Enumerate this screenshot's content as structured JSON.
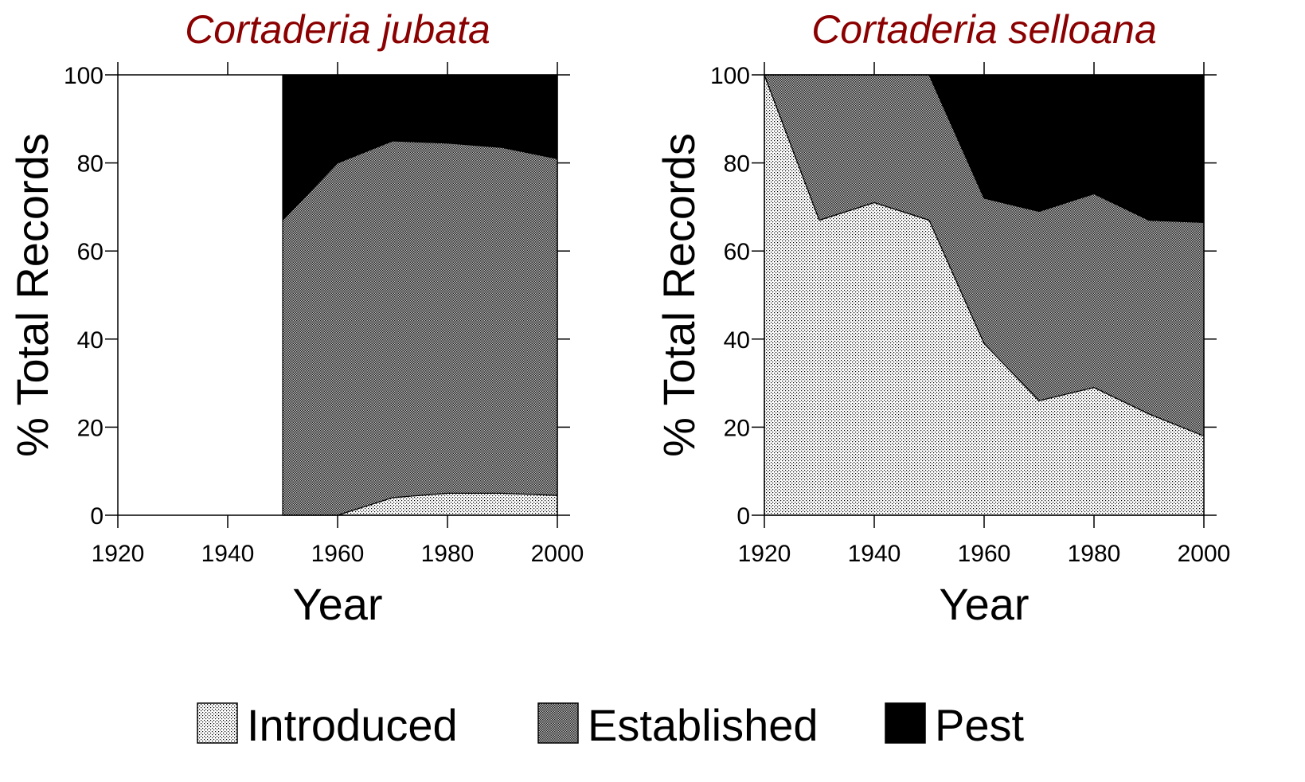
{
  "chart_data": [
    {
      "type": "stacked_area",
      "title": "Cortaderia jubata",
      "x_label": "Year",
      "y_label": "% Total Records",
      "x": [
        1950,
        1960,
        1970,
        1980,
        1990,
        2000
      ],
      "series": [
        {
          "name": "Introduced",
          "pattern": "dots",
          "color": "#000000",
          "values": [
            0,
            0,
            4,
            5,
            5,
            4.5
          ]
        },
        {
          "name": "Established",
          "pattern": "checker",
          "color": "#000000",
          "values": [
            67,
            80,
            81,
            79.5,
            78.5,
            76.5
          ]
        },
        {
          "name": "Pest",
          "pattern": "solid",
          "color": "#000000",
          "values": [
            33,
            20,
            15,
            15.5,
            16.5,
            19
          ]
        }
      ],
      "xlim": [
        1920,
        2000
      ],
      "xticks": [
        1920,
        1940,
        1960,
        1980,
        2000
      ],
      "ylim": [
        0,
        100
      ],
      "yticks": [
        0,
        20,
        40,
        60,
        80,
        100
      ]
    },
    {
      "type": "stacked_area",
      "title": "Cortaderia selloana",
      "x_label": "Year",
      "y_label": "% Total Records",
      "x": [
        1920,
        1930,
        1940,
        1950,
        1960,
        1970,
        1980,
        1990,
        2000
      ],
      "series": [
        {
          "name": "Introduced",
          "pattern": "dots",
          "color": "#000000",
          "values": [
            100,
            67,
            71,
            67,
            39,
            26,
            29,
            23,
            18
          ]
        },
        {
          "name": "Established",
          "pattern": "checker",
          "color": "#000000",
          "values": [
            0,
            33,
            29,
            33,
            33,
            43,
            44,
            44,
            48.5
          ]
        },
        {
          "name": "Pest",
          "pattern": "solid",
          "color": "#000000",
          "values": [
            0,
            0,
            0,
            0,
            28,
            31,
            27,
            33,
            33.5
          ]
        }
      ],
      "xlim": [
        1920,
        2000
      ],
      "xticks": [
        1920,
        1940,
        1960,
        1980,
        2000
      ],
      "ylim": [
        0,
        100
      ],
      "yticks": [
        0,
        20,
        40,
        60,
        80,
        100
      ]
    }
  ],
  "legend": "bottom"
}
